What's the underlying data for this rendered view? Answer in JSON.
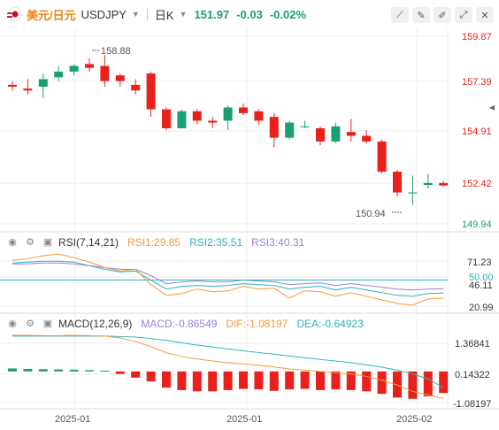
{
  "header": {
    "symbol_cn": "美元/日元",
    "symbol": "USDJPY",
    "timeframe": "日K",
    "price": "151.97",
    "change": "-0.03",
    "change_pct": "-0.02%",
    "tools": [
      "draw-line-icon",
      "edit-icon",
      "pen-icon",
      "expand-icon",
      "close-icon"
    ]
  },
  "main": {
    "y_ticks": [
      "159.87",
      "157.39",
      "154.91",
      "152.42",
      "149.94"
    ],
    "high_label": "158.88",
    "low_label": "150.94",
    "colors": {
      "up": "#1a9e76",
      "down": "#e8211c",
      "axis_tick": "#e8211c",
      "axis_tick_low": "#1a9e76"
    }
  },
  "rsi": {
    "name": "RSI(7,14,21)",
    "rsi1": "RSI1:29.85",
    "rsi2": "RSI2:35.51",
    "rsi3": "RSI3:40.31",
    "y_ticks": [
      "71.23",
      "50.00",
      "46.11",
      "20.99"
    ],
    "colors": {
      "rsi1": "#f59a3c",
      "rsi2": "#2bb3c0",
      "rsi3": "#9b7fd6"
    }
  },
  "macd": {
    "name": "MACD(12,26,9)",
    "macd": "MACD:-0.86549",
    "dif": "DIF:-1.08197",
    "dea": "DEA:-0.64923",
    "y_ticks": [
      "1.36841",
      "0.14322",
      "-1.08197"
    ],
    "colors": {
      "macd": "#9b7fd6",
      "dif": "#f59a3c",
      "dea": "#2bb3c0"
    }
  },
  "x_labels": [
    "2025-01",
    "2025-01",
    "2025-02"
  ],
  "chart_data": {
    "type": "candlestick",
    "y_range": [
      149.94,
      159.87
    ],
    "candles": [
      {
        "o": 157.3,
        "h": 157.5,
        "l": 157.0,
        "c": 157.2
      },
      {
        "o": 157.1,
        "h": 157.6,
        "l": 156.8,
        "c": 157.0
      },
      {
        "o": 157.2,
        "h": 157.9,
        "l": 156.6,
        "c": 157.6
      },
      {
        "o": 157.7,
        "h": 158.3,
        "l": 157.5,
        "c": 158.0
      },
      {
        "o": 158.0,
        "h": 158.4,
        "l": 157.8,
        "c": 158.3
      },
      {
        "o": 158.4,
        "h": 158.7,
        "l": 158.0,
        "c": 158.2
      },
      {
        "o": 158.3,
        "h": 158.88,
        "l": 157.2,
        "c": 157.5
      },
      {
        "o": 157.8,
        "h": 157.9,
        "l": 157.2,
        "c": 157.5
      },
      {
        "o": 157.3,
        "h": 157.6,
        "l": 156.8,
        "c": 157.0
      },
      {
        "o": 157.9,
        "h": 158.0,
        "l": 155.6,
        "c": 156.0
      },
      {
        "o": 156.0,
        "h": 156.1,
        "l": 154.9,
        "c": 155.0
      },
      {
        "o": 155.0,
        "h": 156.0,
        "l": 155.0,
        "c": 155.9
      },
      {
        "o": 155.9,
        "h": 156.0,
        "l": 155.2,
        "c": 155.4
      },
      {
        "o": 155.4,
        "h": 155.6,
        "l": 155.0,
        "c": 155.3
      },
      {
        "o": 155.4,
        "h": 156.2,
        "l": 154.9,
        "c": 156.1
      },
      {
        "o": 156.1,
        "h": 156.3,
        "l": 155.7,
        "c": 155.8
      },
      {
        "o": 155.9,
        "h": 156.0,
        "l": 155.2,
        "c": 155.4
      },
      {
        "o": 155.6,
        "h": 155.8,
        "l": 154.0,
        "c": 154.5
      },
      {
        "o": 154.5,
        "h": 155.4,
        "l": 154.4,
        "c": 155.3
      },
      {
        "o": 155.1,
        "h": 155.4,
        "l": 155.0,
        "c": 155.1
      },
      {
        "o": 155.0,
        "h": 155.1,
        "l": 154.1,
        "c": 154.3
      },
      {
        "o": 154.3,
        "h": 155.3,
        "l": 154.2,
        "c": 155.1
      },
      {
        "o": 154.8,
        "h": 155.5,
        "l": 154.3,
        "c": 154.6
      },
      {
        "o": 154.6,
        "h": 154.9,
        "l": 154.2,
        "c": 154.3
      },
      {
        "o": 154.3,
        "h": 154.4,
        "l": 152.6,
        "c": 152.7
      },
      {
        "o": 152.7,
        "h": 152.8,
        "l": 151.4,
        "c": 151.6
      },
      {
        "o": 151.6,
        "h": 152.5,
        "l": 150.94,
        "c": 151.6
      },
      {
        "o": 152.0,
        "h": 152.6,
        "l": 151.8,
        "c": 152.1
      },
      {
        "o": 152.1,
        "h": 152.2,
        "l": 151.9,
        "c": 151.97
      }
    ],
    "rsi_range": [
      20.99,
      71.23
    ],
    "rsi1": [
      72,
      74,
      77,
      79,
      75,
      70,
      64,
      60,
      62,
      45,
      33,
      35,
      40,
      37,
      38,
      43,
      40,
      41,
      30,
      38,
      37,
      32,
      36,
      32,
      28,
      24,
      22,
      29,
      29.85
    ],
    "rsi2": [
      69,
      70,
      71,
      71,
      70,
      66,
      62,
      59,
      60,
      50,
      40,
      43,
      44,
      43,
      44,
      46,
      45,
      44,
      40,
      42,
      43,
      39,
      42,
      39,
      36,
      33,
      32,
      35,
      35.51
    ],
    "rsi3": [
      68,
      68,
      69,
      69,
      68,
      66,
      64,
      62,
      62,
      55,
      46,
      48,
      49,
      48,
      48,
      50,
      49,
      48,
      45,
      46,
      47,
      44,
      46,
      44,
      42,
      40,
      39,
      40,
      40.31
    ],
    "macd_range": [
      -1.5,
      1.7
    ],
    "macd_hist": [
      0.12,
      0.1,
      0.09,
      0.08,
      0.07,
      0.05,
      0.03,
      -0.1,
      -0.25,
      -0.4,
      -0.65,
      -0.75,
      -0.8,
      -0.8,
      -0.75,
      -0.7,
      -0.72,
      -0.78,
      -0.72,
      -0.7,
      -0.75,
      -0.72,
      -0.75,
      -0.8,
      -0.9,
      -1.05,
      -1.1,
      -1.0,
      -0.86549
    ],
    "dif": [
      1.45,
      1.45,
      1.44,
      1.44,
      1.45,
      1.44,
      1.42,
      1.35,
      1.2,
      1.0,
      0.75,
      0.6,
      0.5,
      0.42,
      0.35,
      0.3,
      0.25,
      0.18,
      0.1,
      0.05,
      0.0,
      -0.05,
      -0.1,
      -0.2,
      -0.35,
      -0.55,
      -0.8,
      -0.95,
      -1.08197
    ],
    "dea": [
      1.42,
      1.42,
      1.42,
      1.42,
      1.42,
      1.42,
      1.42,
      1.4,
      1.38,
      1.32,
      1.25,
      1.15,
      1.06,
      0.98,
      0.9,
      0.83,
      0.76,
      0.69,
      0.62,
      0.55,
      0.48,
      0.42,
      0.35,
      0.27,
      0.17,
      0.05,
      -0.1,
      -0.3,
      -0.64923
    ]
  }
}
